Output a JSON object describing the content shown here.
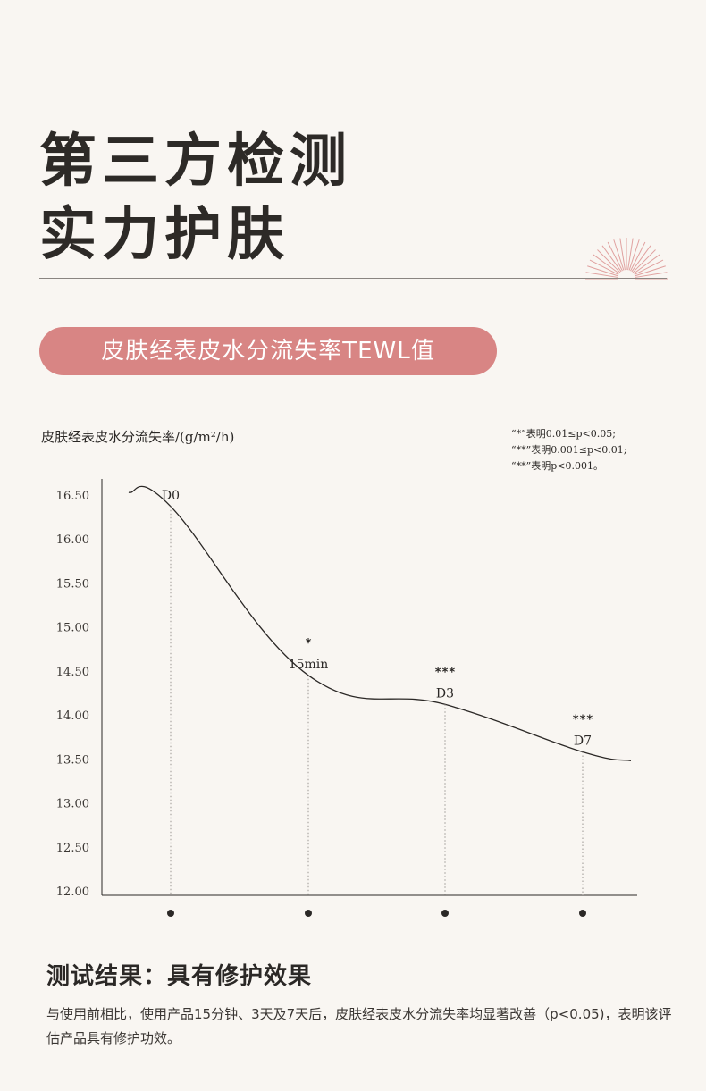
{
  "title": {
    "line1": "第三方检测",
    "line2": "实力护肤"
  },
  "section_label": "皮肤经表皮水分流失率TEWL值",
  "significance_notes": [
    "“*”表明0.01≤p<0.05;",
    "“**”表明0.001≤p<0.01;",
    "“**”表明p<0.001。"
  ],
  "chart_data": {
    "type": "line",
    "ylabel": "皮肤经表皮水分流失率/(g/m²/h)",
    "ylim": [
      12.0,
      16.5
    ],
    "yticks": [
      "16.50",
      "16.00",
      "15.50",
      "15.00",
      "14.50",
      "14.00",
      "13.50",
      "13.00",
      "12.50",
      "12.00"
    ],
    "categories": [
      "D0",
      "15min",
      "D3",
      "D7"
    ],
    "values": [
      16.37,
      14.45,
      14.12,
      13.58
    ],
    "significance": [
      "",
      "*",
      "***",
      "***"
    ],
    "curve_start": 16.53,
    "curve_end": 13.48,
    "grid": false,
    "colors": {
      "line": "#2b2826",
      "guide": "#9a9591"
    }
  },
  "result": {
    "title": "测试结果：具有修护效果",
    "body": "与使用前相比，使用产品15分钟、3天及7天后，皮肤经表皮水分流失率均显著改善（p<0.05)，表明该评估产品具有修护功效。"
  },
  "colors": {
    "background": "#f9f6f2",
    "accent": "#d88584"
  }
}
